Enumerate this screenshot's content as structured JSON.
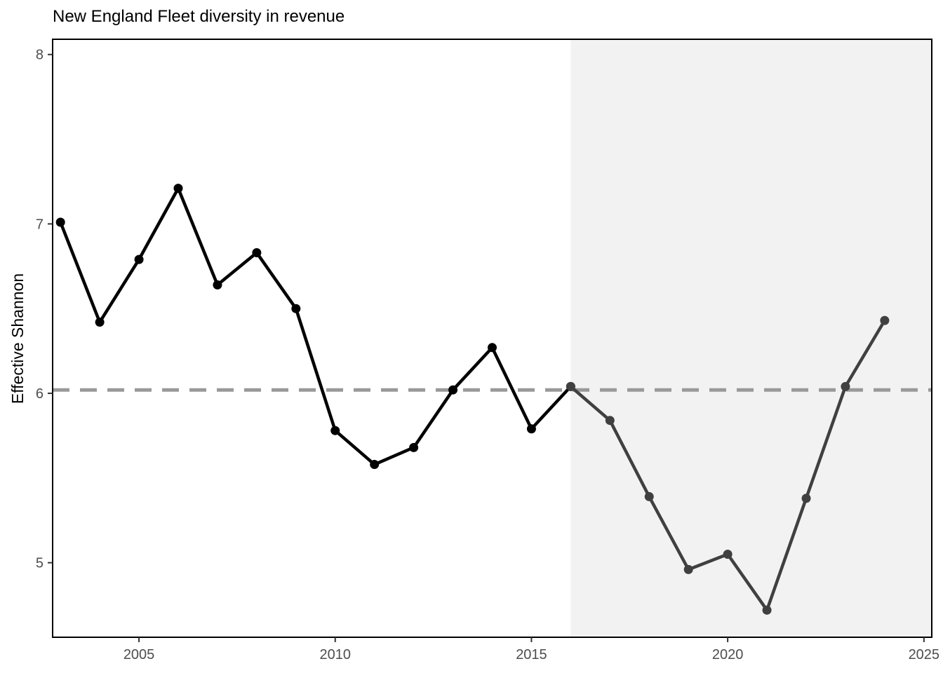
{
  "chart_data": {
    "type": "line",
    "title": "New England Fleet diversity in revenue",
    "xlabel": "",
    "ylabel": "Effective Shannon",
    "xlim": [
      2002.8,
      2025.2
    ],
    "ylim": [
      4.56,
      8.09
    ],
    "x_ticks": [
      2005,
      2010,
      2015,
      2020,
      2025
    ],
    "y_ticks": [
      5,
      6,
      7,
      8
    ],
    "grid": false,
    "reference_line": {
      "y": 6.02,
      "style": "dashed",
      "color": "#999999"
    },
    "shaded_region": {
      "x_start": 2016,
      "x_end": 2025.2,
      "color": "#f2f2f2"
    },
    "series": [
      {
        "color": "#000000",
        "x": [
          2003,
          2004,
          2005,
          2006,
          2007,
          2008,
          2009,
          2010,
          2011,
          2012,
          2013,
          2014,
          2015,
          2016
        ],
        "y": [
          7.01,
          6.42,
          6.79,
          7.21,
          6.64,
          6.83,
          6.5,
          5.78,
          5.58,
          5.68,
          6.02,
          6.27,
          5.79,
          6.04
        ]
      },
      {
        "color": "#404040",
        "x": [
          2016,
          2017,
          2018,
          2019,
          2020,
          2021,
          2022,
          2023,
          2024
        ],
        "y": [
          6.04,
          5.84,
          5.39,
          4.96,
          5.05,
          4.72,
          5.38,
          6.04,
          6.43
        ]
      }
    ]
  }
}
